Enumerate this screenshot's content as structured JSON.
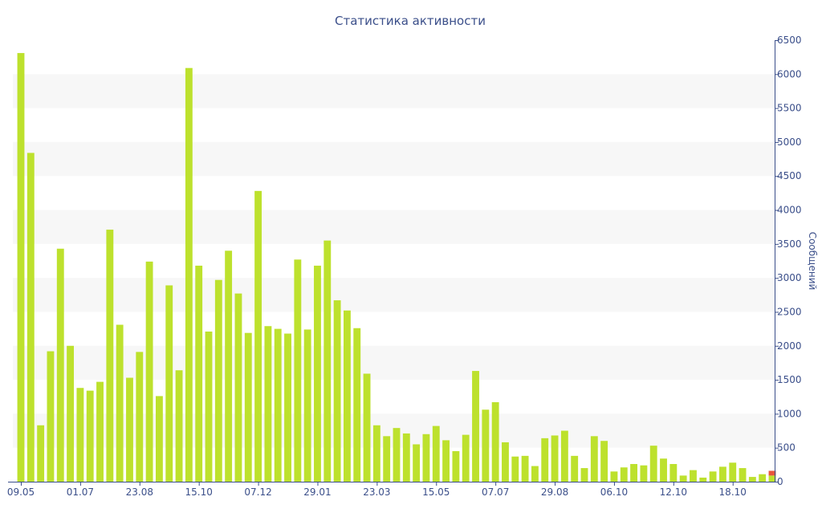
{
  "chart_data": {
    "type": "bar",
    "title": "Статистика активности",
    "xlabel": "",
    "ylabel": "Сообщений",
    "ylim": [
      0,
      6500
    ],
    "yticks": [
      0,
      500,
      1000,
      1500,
      2000,
      2500,
      3000,
      3500,
      4000,
      4500,
      5000,
      5500,
      6000,
      6500
    ],
    "grid": "alternating horizontal bands",
    "y_axis_position": "right",
    "legend": "none",
    "colors": {
      "bar": "#bde12d",
      "highlight": "#e8553c",
      "axis": "#3b4f8a",
      "band": "#f7f7f7"
    },
    "xtick_labels": [
      {
        "label": "09.05",
        "index": 0
      },
      {
        "label": "01.07",
        "index": 6
      },
      {
        "label": "23.08",
        "index": 12
      },
      {
        "label": "15.10",
        "index": 18
      },
      {
        "label": "07.12",
        "index": 24
      },
      {
        "label": "29.01",
        "index": 30
      },
      {
        "label": "23.03",
        "index": 36
      },
      {
        "label": "15.05",
        "index": 42
      },
      {
        "label": "07.07",
        "index": 48
      },
      {
        "label": "29.08",
        "index": 54
      },
      {
        "label": "06.10",
        "index": 60
      },
      {
        "label": "12.10",
        "index": 66
      },
      {
        "label": "18.10",
        "index": 72
      }
    ],
    "series": [
      {
        "values": [
          6310,
          4840,
          830,
          1920,
          3430,
          2000,
          1380,
          1340,
          1470,
          3710,
          2310,
          1530,
          1910,
          3240,
          1260,
          2890,
          1640,
          6090,
          3180,
          2210,
          2970,
          3400,
          2770,
          2190,
          4280,
          2290,
          2250,
          2180,
          3270,
          2240,
          3180,
          3550,
          2670,
          2520,
          2260,
          1590,
          830,
          670,
          790,
          710,
          550,
          700,
          820,
          610,
          450,
          690,
          1630,
          1060,
          1170,
          580,
          370,
          380,
          230,
          640,
          680,
          750,
          380,
          200,
          670,
          600,
          150,
          210,
          260,
          240,
          530,
          340,
          260,
          90,
          170,
          60,
          150,
          220,
          280,
          200,
          70,
          110,
          90
        ]
      },
      {
        "values": [
          0,
          0,
          0,
          0,
          0,
          0,
          0,
          0,
          0,
          0,
          0,
          0,
          0,
          0,
          0,
          0,
          0,
          0,
          0,
          0,
          0,
          0,
          0,
          0,
          0,
          0,
          0,
          0,
          0,
          0,
          0,
          0,
          0,
          0,
          0,
          0,
          0,
          0,
          0,
          0,
          0,
          0,
          0,
          0,
          0,
          0,
          0,
          0,
          0,
          0,
          0,
          0,
          0,
          0,
          0,
          0,
          0,
          0,
          0,
          0,
          0,
          0,
          0,
          0,
          0,
          0,
          0,
          0,
          0,
          0,
          0,
          0,
          0,
          0,
          0,
          0,
          70
        ]
      }
    ]
  }
}
